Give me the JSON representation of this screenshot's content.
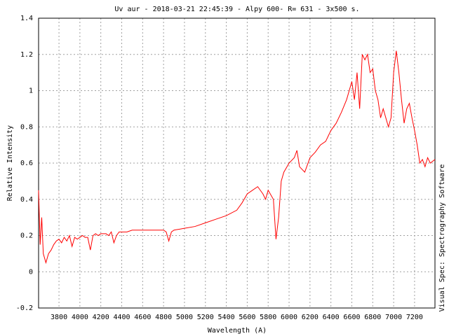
{
  "chart_data": {
    "type": "line",
    "title": "Uv aur - 2018-03-21 22:45:39 - Alpy 600- R= 631 - 3x500 s.",
    "x_label": "Wavelength (A)",
    "y_label": "Relative Intensity",
    "annotation": "Visual Spec: Spectrography Software",
    "xlim": [
      3605,
      7395
    ],
    "ylim": [
      -0.2,
      1.4
    ],
    "xticks": [
      3800,
      4000,
      4200,
      4400,
      4600,
      4800,
      5000,
      5200,
      5400,
      5600,
      5800,
      6000,
      6200,
      6400,
      6600,
      6800,
      7000,
      7200
    ],
    "yticks": [
      -0.2,
      0,
      0.2,
      0.4,
      0.6,
      0.8,
      1,
      1.2,
      1.4
    ],
    "grid": true,
    "series": [
      {
        "color": "#ff0000",
        "x": [
          3605,
          3620,
          3635,
          3650,
          3675,
          3700,
          3725,
          3750,
          3775,
          3800,
          3825,
          3850,
          3875,
          3900,
          3925,
          3950,
          3975,
          4000,
          4025,
          4050,
          4075,
          4100,
          4125,
          4150,
          4175,
          4200,
          4225,
          4250,
          4275,
          4300,
          4325,
          4350,
          4375,
          4400,
          4450,
          4500,
          4550,
          4600,
          4650,
          4700,
          4750,
          4800,
          4825,
          4850,
          4875,
          4900,
          5000,
          5100,
          5200,
          5300,
          5400,
          5500,
          5550,
          5600,
          5650,
          5700,
          5750,
          5775,
          5800,
          5850,
          5875,
          5900,
          5925,
          5950,
          6000,
          6050,
          6075,
          6100,
          6150,
          6200,
          6250,
          6300,
          6350,
          6400,
          6450,
          6500,
          6550,
          6600,
          6625,
          6650,
          6675,
          6700,
          6725,
          6750,
          6775,
          6800,
          6825,
          6850,
          6875,
          6900,
          6925,
          6950,
          6975,
          7000,
          7025,
          7050,
          7075,
          7100,
          7125,
          7150,
          7175,
          7200,
          7225,
          7250,
          7275,
          7300,
          7325,
          7350,
          7395
        ],
        "values": [
          0.45,
          0.15,
          0.3,
          0.1,
          0.05,
          0.1,
          0.12,
          0.15,
          0.17,
          0.18,
          0.16,
          0.19,
          0.17,
          0.2,
          0.14,
          0.19,
          0.18,
          0.19,
          0.2,
          0.19,
          0.19,
          0.12,
          0.2,
          0.21,
          0.2,
          0.21,
          0.21,
          0.21,
          0.2,
          0.22,
          0.16,
          0.2,
          0.22,
          0.22,
          0.22,
          0.23,
          0.23,
          0.23,
          0.23,
          0.23,
          0.23,
          0.23,
          0.22,
          0.17,
          0.22,
          0.23,
          0.24,
          0.25,
          0.27,
          0.29,
          0.31,
          0.34,
          0.38,
          0.43,
          0.45,
          0.47,
          0.43,
          0.4,
          0.45,
          0.4,
          0.18,
          0.3,
          0.5,
          0.55,
          0.6,
          0.63,
          0.67,
          0.58,
          0.55,
          0.63,
          0.66,
          0.7,
          0.72,
          0.78,
          0.82,
          0.88,
          0.95,
          1.05,
          0.95,
          1.1,
          0.9,
          1.2,
          1.17,
          1.2,
          1.1,
          1.12,
          1.0,
          0.95,
          0.85,
          0.9,
          0.85,
          0.8,
          0.85,
          1.1,
          1.22,
          1.1,
          0.95,
          0.82,
          0.9,
          0.93,
          0.85,
          0.78,
          0.7,
          0.6,
          0.62,
          0.58,
          0.63,
          0.6,
          0.62
        ]
      }
    ]
  }
}
